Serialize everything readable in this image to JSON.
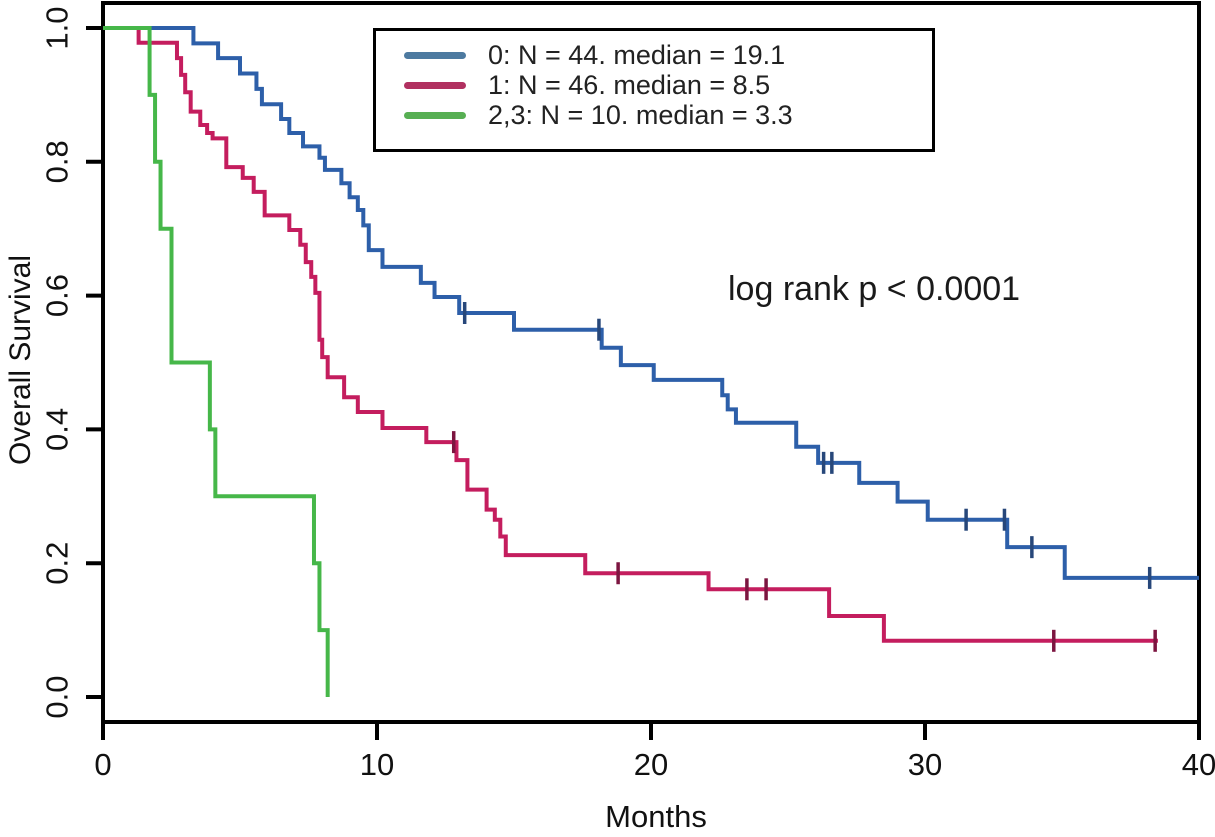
{
  "chart_data": {
    "type": "line",
    "subtype": "kaplan-meier-step-survival",
    "title": "",
    "xlabel": "Months",
    "ylabel": "Overall Survival",
    "annotation": "log rank p < 0.0001",
    "xlim": [
      0,
      40
    ],
    "ylim": [
      0.0,
      1.0
    ],
    "xticks": [
      "0",
      "10",
      "20",
      "30",
      "40"
    ],
    "yticks": [
      "0.0",
      "0.2",
      "0.4",
      "0.6",
      "0.8",
      "1.0"
    ],
    "grid": false,
    "legend_position": "top-center-inside",
    "series": [
      {
        "name": "0",
        "label": "0: N = 44. median = 19.1",
        "n": 44,
        "median": 19.1,
        "color": "#2d5fa9",
        "legend_color": "#4d7aa0",
        "censor_color": "#27477a",
        "steps": [
          [
            0,
            1.0
          ],
          [
            3.3,
            0.977
          ],
          [
            4.2,
            0.955
          ],
          [
            5.0,
            0.932
          ],
          [
            5.6,
            0.909
          ],
          [
            5.8,
            0.886
          ],
          [
            6.5,
            0.864
          ],
          [
            6.8,
            0.843
          ],
          [
            7.3,
            0.823
          ],
          [
            7.9,
            0.806
          ],
          [
            8.1,
            0.788
          ],
          [
            8.7,
            0.768
          ],
          [
            9.0,
            0.747
          ],
          [
            9.3,
            0.728
          ],
          [
            9.5,
            0.705
          ],
          [
            9.7,
            0.668
          ],
          [
            10.2,
            0.643
          ],
          [
            11.6,
            0.619
          ],
          [
            12.1,
            0.598
          ],
          [
            13.0,
            0.574
          ],
          [
            15.0,
            0.549
          ],
          [
            18.2,
            0.522
          ],
          [
            18.9,
            0.496
          ],
          [
            20.1,
            0.474
          ],
          [
            22.6,
            0.451
          ],
          [
            22.8,
            0.43
          ],
          [
            23.1,
            0.41
          ],
          [
            25.3,
            0.374
          ],
          [
            26.1,
            0.35
          ],
          [
            27.6,
            0.32
          ],
          [
            29.0,
            0.292
          ],
          [
            30.1,
            0.265
          ],
          [
            33.0,
            0.224
          ],
          [
            35.1,
            0.178
          ]
        ],
        "end_time": 40,
        "censors": [
          [
            13.2,
            0.574
          ],
          [
            18.1,
            0.549
          ],
          [
            26.3,
            0.35
          ],
          [
            26.6,
            0.35
          ],
          [
            31.5,
            0.265
          ],
          [
            32.9,
            0.265
          ],
          [
            33.9,
            0.224
          ],
          [
            38.2,
            0.178
          ]
        ]
      },
      {
        "name": "1",
        "label": "1: N = 46. median = 8.5",
        "n": 46,
        "median": 8.5,
        "color": "#c41d5e",
        "legend_color": "#b13060",
        "censor_color": "#7c1540",
        "steps": [
          [
            0,
            1.0
          ],
          [
            1.3,
            0.978
          ],
          [
            2.7,
            0.955
          ],
          [
            2.85,
            0.93
          ],
          [
            3.0,
            0.904
          ],
          [
            3.2,
            0.875
          ],
          [
            3.55,
            0.855
          ],
          [
            3.8,
            0.843
          ],
          [
            4.0,
            0.835
          ],
          [
            4.5,
            0.792
          ],
          [
            5.1,
            0.776
          ],
          [
            5.5,
            0.755
          ],
          [
            5.9,
            0.72
          ],
          [
            6.8,
            0.698
          ],
          [
            7.2,
            0.676
          ],
          [
            7.4,
            0.65
          ],
          [
            7.6,
            0.628
          ],
          [
            7.75,
            0.604
          ],
          [
            7.9,
            0.534
          ],
          [
            8.0,
            0.508
          ],
          [
            8.2,
            0.478
          ],
          [
            8.8,
            0.448
          ],
          [
            9.3,
            0.426
          ],
          [
            10.2,
            0.402
          ],
          [
            11.8,
            0.381
          ],
          [
            12.9,
            0.354
          ],
          [
            13.3,
            0.31
          ],
          [
            14.0,
            0.28
          ],
          [
            14.3,
            0.265
          ],
          [
            14.5,
            0.24
          ],
          [
            14.7,
            0.212
          ],
          [
            17.6,
            0.185
          ],
          [
            22.1,
            0.161
          ],
          [
            26.5,
            0.121
          ],
          [
            28.5,
            0.084
          ]
        ],
        "end_time": 38.5,
        "censors": [
          [
            12.8,
            0.381
          ],
          [
            18.8,
            0.185
          ],
          [
            23.5,
            0.161
          ],
          [
            24.2,
            0.161
          ],
          [
            34.7,
            0.084
          ],
          [
            38.4,
            0.084
          ]
        ]
      },
      {
        "name": "2,3",
        "label": "2,3: N = 10. median = 3.3",
        "n": 10,
        "median": 3.3,
        "color": "#46b749",
        "legend_color": "#57af53",
        "censor_color": "#2e7a31",
        "steps": [
          [
            0,
            1.0
          ],
          [
            1.7,
            0.9
          ],
          [
            1.9,
            0.8
          ],
          [
            2.1,
            0.7
          ],
          [
            2.5,
            0.5
          ],
          [
            3.9,
            0.4
          ],
          [
            4.1,
            0.3
          ],
          [
            7.7,
            0.2
          ],
          [
            7.9,
            0.1
          ],
          [
            8.2,
            0.0
          ]
        ],
        "end_time": 8.2,
        "censors": []
      }
    ]
  }
}
